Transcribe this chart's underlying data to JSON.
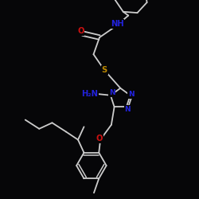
{
  "bg": "#060608",
  "bc": "#cccccc",
  "bw": 1.3,
  "N_color": "#2222dd",
  "O_color": "#cc1111",
  "S_color": "#bb8800",
  "fs": 6.5,
  "xlim": [
    0,
    10
  ],
  "ylim": [
    0,
    10
  ]
}
